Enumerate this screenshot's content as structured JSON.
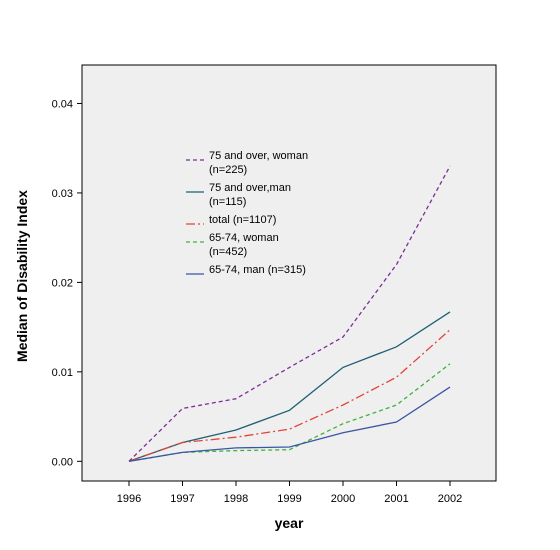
{
  "chart_data": {
    "type": "line",
    "title": "",
    "xlabel": "year",
    "ylabel": "Median of Disability Index",
    "x": [
      "1996",
      "1997",
      "1998",
      "1999",
      "2000",
      "2001",
      "2002"
    ],
    "ylim": [
      -0.0022,
      0.0443
    ],
    "yticks": [
      "0.00",
      "0.01",
      "0.02",
      "0.03",
      "0.04"
    ],
    "ytick_values": [
      0,
      0.01,
      0.02,
      0.03,
      0.04
    ],
    "grid": false,
    "legend_position": "upper-left inside plot",
    "series": [
      {
        "name": [
          "75 and over, woman",
          "(n=225)"
        ],
        "color": "#7b2e97",
        "dash": "4,3",
        "values": [
          0.0,
          0.0059,
          0.007,
          0.0105,
          0.0139,
          0.022,
          0.033
        ]
      },
      {
        "name": [
          "75 and over,man",
          "(n=115)"
        ],
        "color": "#1f6076",
        "dash": "",
        "values": [
          0.0,
          0.0021,
          0.0035,
          0.0057,
          0.0105,
          0.0128,
          0.0167
        ]
      },
      {
        "name": [
          "total (n=1107)"
        ],
        "color": "#e3443a",
        "dash": "9,3,2,3",
        "values": [
          0.0,
          0.0021,
          0.0027,
          0.0036,
          0.0063,
          0.0094,
          0.0147
        ]
      },
      {
        "name": [
          "65-74, woman",
          "(n=452)"
        ],
        "color": "#3cb43c",
        "dash": "4,3",
        "values": [
          0.0,
          0.001,
          0.0012,
          0.0013,
          0.0042,
          0.0063,
          0.0109
        ]
      },
      {
        "name": [
          "65-74, man (n=315)"
        ],
        "color": "#3a55a4",
        "dash": "",
        "values": [
          0.0,
          0.001,
          0.0015,
          0.0016,
          0.0032,
          0.0044,
          0.0083
        ]
      }
    ]
  }
}
